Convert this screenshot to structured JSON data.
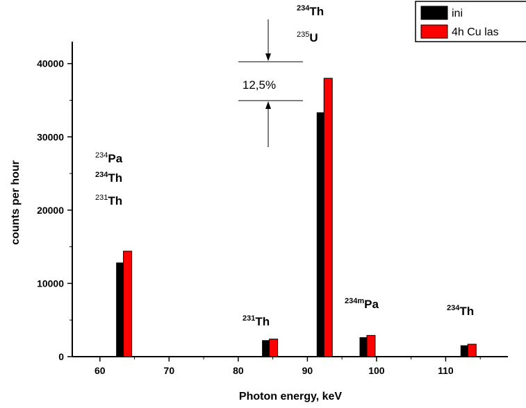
{
  "chart_data": {
    "type": "bar",
    "xlabel": "Photon energy, keV",
    "ylabel": "counts per hour",
    "xlim": [
      56,
      119
    ],
    "ylim": [
      0,
      43000
    ],
    "x_ticks": [
      60,
      70,
      80,
      90,
      100,
      110
    ],
    "y_ticks": [
      0,
      10000,
      20000,
      30000,
      40000
    ],
    "x_tick_labels": [
      "60",
      "70",
      "80",
      "90",
      "100",
      "110"
    ],
    "y_tick_labels": [
      "0",
      "10000",
      "20000",
      "30000",
      "40000"
    ],
    "grid": false,
    "legend": "top-right",
    "series": [
      {
        "name": "ini",
        "color": "#000000",
        "x": [
          63.0,
          84.1,
          92.0,
          98.2,
          112.8
        ],
        "values": [
          12800,
          2200,
          33300,
          2600,
          1500
        ]
      },
      {
        "name": "4h Cu las",
        "color": "#ff0000",
        "x": [
          64.0,
          85.1,
          93.0,
          99.2,
          113.8
        ],
        "values": [
          14400,
          2400,
          38000,
          2900,
          1700
        ]
      }
    ],
    "annotations": [
      {
        "lines": [
          {
            "mass": "234",
            "symbol": "Pa",
            "bold_mass": false
          },
          {
            "mass": "234",
            "symbol": "Th",
            "bold_mass": true
          },
          {
            "mass": "231",
            "symbol": "Th",
            "bold_mass": false
          }
        ]
      },
      {
        "lines": [
          {
            "mass": "231",
            "symbol": "Th",
            "bold_mass": true
          }
        ]
      },
      {
        "lines": [
          {
            "mass": "234",
            "symbol": "Th",
            "bold_mass": true
          },
          {
            "mass": "235",
            "symbol": "U",
            "bold_mass": false
          }
        ]
      },
      {
        "lines": [
          {
            "mass": "234m",
            "symbol": "Pa",
            "bold_mass": true
          }
        ]
      },
      {
        "lines": [
          {
            "mass": "234",
            "symbol": "Th",
            "bold_mass": true
          }
        ]
      }
    ],
    "difference_label": "12,5%"
  }
}
